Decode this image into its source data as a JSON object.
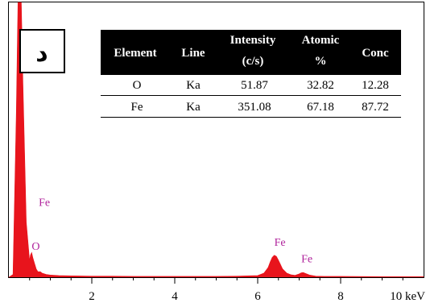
{
  "panel_label": "د",
  "table": {
    "headers": [
      {
        "line1": "Element",
        "line2": ""
      },
      {
        "line1": "Line",
        "line2": ""
      },
      {
        "line1": "Intensity",
        "line2": "(c/s)"
      },
      {
        "line1": "Atomic",
        "line2": "%"
      },
      {
        "line1": "Conc",
        "line2": ""
      }
    ],
    "rows": [
      [
        "O",
        "Ka",
        "51.87",
        "32.82",
        "12.28"
      ],
      [
        "Fe",
        "Ka",
        "351.08",
        "67.18",
        "87.72"
      ]
    ]
  },
  "chart_data": {
    "type": "area",
    "title": "",
    "xlabel": "",
    "ylabel": "",
    "x_unit": "keV",
    "xlim": [
      0,
      10
    ],
    "ylim": [
      0,
      100
    ],
    "x_ticks": [
      2,
      4,
      6,
      8,
      10
    ],
    "x_tick_labels": [
      "2",
      "4",
      "6",
      "8",
      "10 keV"
    ],
    "grid": false,
    "legend": "none",
    "fill_color": "#e8141c",
    "label_color": "#b0249c",
    "series": [
      {
        "x": [
          0.0,
          0.1,
          0.18,
          0.22,
          0.26,
          0.3,
          0.34,
          0.42,
          0.5,
          0.52,
          0.55,
          0.58,
          0.62,
          0.66,
          0.7,
          0.72,
          0.76,
          0.8,
          0.9,
          1.0,
          1.2,
          1.5,
          2.0,
          2.5,
          3.0,
          3.5,
          4.0,
          4.5,
          5.0,
          5.5,
          6.0,
          6.15,
          6.25,
          6.3,
          6.35,
          6.4,
          6.45,
          6.5,
          6.55,
          6.6,
          6.7,
          6.8,
          6.9,
          7.0,
          7.05,
          7.1,
          7.15,
          7.25,
          7.4,
          7.6,
          8.0,
          9.0,
          10.0
        ],
        "y": [
          0,
          1,
          60,
          100,
          100,
          100,
          70,
          20,
          6,
          8,
          9,
          7,
          5,
          3,
          2,
          2,
          2,
          1.5,
          1,
          0.8,
          0.6,
          0.5,
          0.4,
          0.4,
          0.3,
          0.3,
          0.3,
          0.3,
          0.3,
          0.4,
          0.6,
          1.5,
          3.5,
          5.5,
          7.2,
          8,
          7.6,
          6.2,
          4.6,
          3,
          1.5,
          0.9,
          0.7,
          1.2,
          1.6,
          1.7,
          1.4,
          0.8,
          0.4,
          0.3,
          0.3,
          0.2,
          0.2
        ]
      }
    ],
    "annotations": [
      {
        "text": "Fe",
        "x": 0.72,
        "y": 26
      },
      {
        "text": "O",
        "x": 0.55,
        "y": 10
      },
      {
        "text": "Fe",
        "x": 6.4,
        "y": 11.5
      },
      {
        "text": "Fe",
        "x": 7.05,
        "y": 5.5
      }
    ]
  }
}
